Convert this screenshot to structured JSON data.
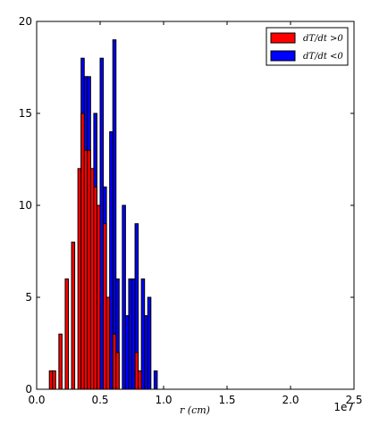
{
  "chart_data": {
    "type": "bar",
    "grid": false,
    "legend_position": "top-right",
    "xlabel": "r  (cm)",
    "ylabel": "",
    "xlim": [
      0,
      25000000
    ],
    "ylim": [
      0,
      20
    ],
    "x_offset_label": "1e7",
    "x_ticks": [
      0,
      5000000,
      10000000,
      15000000,
      20000000,
      25000000
    ],
    "x_tick_labels": [
      "0.0",
      "0.5",
      "1.0",
      "1.5",
      "2.0",
      "2.5"
    ],
    "y_ticks": [
      0,
      5,
      10,
      15,
      20
    ],
    "y_tick_labels": [
      "0",
      "5",
      "10",
      "15",
      "20"
    ],
    "bin_width": 250000,
    "series": [
      {
        "name": "dT/dt >0",
        "color": "#ff0000",
        "bins": [
          {
            "x": 1000000,
            "count": 1
          },
          {
            "x": 1250000,
            "count": 1
          },
          {
            "x": 1750000,
            "count": 3
          },
          {
            "x": 2250000,
            "count": 6
          },
          {
            "x": 2750000,
            "count": 8
          },
          {
            "x": 3250000,
            "count": 12
          },
          {
            "x": 3500000,
            "count": 15
          },
          {
            "x": 3750000,
            "count": 13
          },
          {
            "x": 4000000,
            "count": 13
          },
          {
            "x": 4250000,
            "count": 12
          },
          {
            "x": 4500000,
            "count": 11
          },
          {
            "x": 4750000,
            "count": 10
          },
          {
            "x": 5250000,
            "count": 9
          },
          {
            "x": 5500000,
            "count": 5
          },
          {
            "x": 6000000,
            "count": 3
          },
          {
            "x": 6250000,
            "count": 2
          },
          {
            "x": 7750000,
            "count": 2
          },
          {
            "x": 8000000,
            "count": 1
          }
        ]
      },
      {
        "name": "dT/dt <0",
        "color": "#0000ff",
        "bins": [
          {
            "x": 3500000,
            "count": 18
          },
          {
            "x": 3750000,
            "count": 17
          },
          {
            "x": 4000000,
            "count": 17
          },
          {
            "x": 4500000,
            "count": 15
          },
          {
            "x": 5000000,
            "count": 18
          },
          {
            "x": 5250000,
            "count": 11
          },
          {
            "x": 5750000,
            "count": 14
          },
          {
            "x": 6000000,
            "count": 19
          },
          {
            "x": 6250000,
            "count": 6
          },
          {
            "x": 6750000,
            "count": 10
          },
          {
            "x": 7000000,
            "count": 4
          },
          {
            "x": 7250000,
            "count": 6
          },
          {
            "x": 7500000,
            "count": 6
          },
          {
            "x": 7750000,
            "count": 9
          },
          {
            "x": 8250000,
            "count": 6
          },
          {
            "x": 8500000,
            "count": 4
          },
          {
            "x": 8750000,
            "count": 5
          },
          {
            "x": 9250000,
            "count": 1
          }
        ]
      }
    ]
  }
}
